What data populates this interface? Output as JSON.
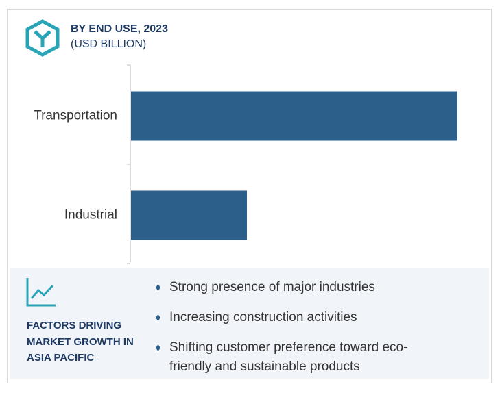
{
  "chart_data": {
    "type": "bar",
    "title": "BY END USE, 2023",
    "subtitle": "(USD BILLION)",
    "categories": [
      "Transportation",
      "Industrial"
    ],
    "values": [
      100,
      35.5
    ],
    "color": "#2d5f8b"
  },
  "factors": {
    "title": "FACTORS DRIVING MARKET GROWTH IN ASIA PACIFIC",
    "items": [
      "Strong presence of major industries",
      "Increasing construction activities",
      "Shifting customer preference toward eco-friendly and sustainable products"
    ]
  }
}
